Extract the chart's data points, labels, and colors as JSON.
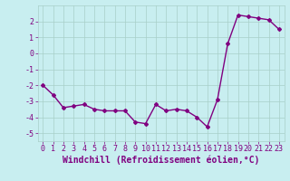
{
  "x": [
    0,
    1,
    2,
    3,
    4,
    5,
    6,
    7,
    8,
    9,
    10,
    11,
    12,
    13,
    14,
    15,
    16,
    17,
    18,
    19,
    20,
    21,
    22,
    23
  ],
  "y": [
    -2.0,
    -2.6,
    -3.4,
    -3.3,
    -3.2,
    -3.5,
    -3.6,
    -3.6,
    -3.6,
    -4.3,
    -4.4,
    -3.2,
    -3.6,
    -3.5,
    -3.6,
    -4.0,
    -4.6,
    -2.9,
    0.6,
    2.4,
    2.3,
    2.2,
    2.1,
    1.5
  ],
  "line_color": "#800080",
  "marker": "D",
  "markersize": 2,
  "linewidth": 1.0,
  "xlabel": "Windchill (Refroidissement éolien,°C)",
  "xlim": [
    -0.5,
    23.5
  ],
  "ylim": [
    -5.5,
    3.0
  ],
  "yticks": [
    -5,
    -4,
    -3,
    -2,
    -1,
    0,
    1,
    2
  ],
  "xticks": [
    0,
    1,
    2,
    3,
    4,
    5,
    6,
    7,
    8,
    9,
    10,
    11,
    12,
    13,
    14,
    15,
    16,
    17,
    18,
    19,
    20,
    21,
    22,
    23
  ],
  "background_color": "#c8eef0",
  "grid_color": "#a8cfc8",
  "tick_color": "#800080",
  "xlabel_color": "#800080",
  "xlabel_fontsize": 7,
  "tick_fontsize": 6
}
